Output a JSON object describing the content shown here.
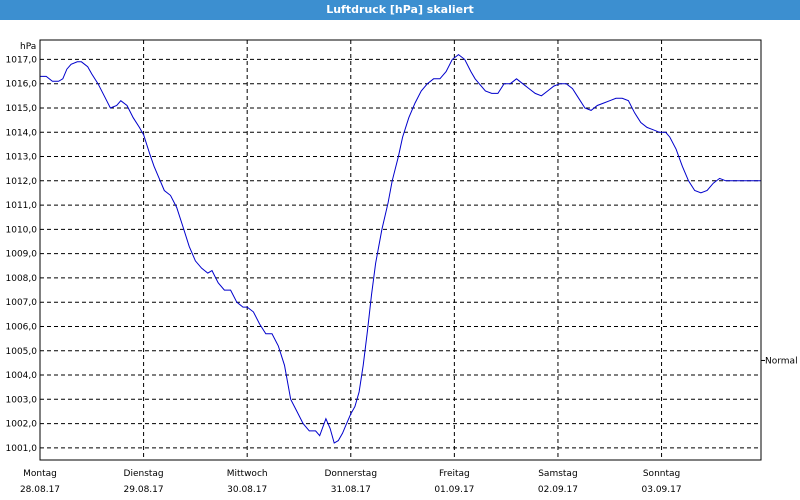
{
  "window": {
    "title": "Luftdruck [hPa] skaliert"
  },
  "chart_data": {
    "type": "line",
    "title": "Luftdruck [hPa] skaliert",
    "ylabel": "hPa",
    "ylim": [
      1000.5,
      1017.8
    ],
    "yticks": [
      "1001,0",
      "1002,0",
      "1003,0",
      "1004,0",
      "1005,0",
      "1006,0",
      "1007,0",
      "1008,0",
      "1009,0",
      "1010,0",
      "1011,0",
      "1012,0",
      "1013,0",
      "1014,0",
      "1015,0",
      "1016,0",
      "1017,0"
    ],
    "ytick_values": [
      1001,
      1002,
      1003,
      1004,
      1005,
      1006,
      1007,
      1008,
      1009,
      1010,
      1011,
      1012,
      1013,
      1014,
      1015,
      1016,
      1017
    ],
    "reference_line": {
      "label": "Normal",
      "value": 1004.6
    },
    "xlim": [
      0,
      6.96
    ],
    "days": [
      {
        "weekday": "Montag",
        "date": "28.08.17"
      },
      {
        "weekday": "Dienstag",
        "date": "29.08.17"
      },
      {
        "weekday": "Mittwoch",
        "date": "30.08.17"
      },
      {
        "weekday": "Donnerstag",
        "date": "31.08.17"
      },
      {
        "weekday": "Freitag",
        "date": "01.09.17"
      },
      {
        "weekday": "Samstag",
        "date": "02.09.17"
      },
      {
        "weekday": "Sonntag",
        "date": "03.09.17"
      }
    ],
    "grid": true,
    "series": [
      {
        "color": "#0000cc",
        "x": [
          0,
          0.06,
          0.12,
          0.18,
          0.22,
          0.26,
          0.3,
          0.36,
          0.4,
          0.46,
          0.5,
          0.56,
          0.62,
          0.68,
          0.74,
          0.78,
          0.84,
          0.9,
          0.96,
          1.0,
          1.06,
          1.1,
          1.16,
          1.2,
          1.26,
          1.32,
          1.38,
          1.44,
          1.5,
          1.56,
          1.62,
          1.66,
          1.72,
          1.78,
          1.84,
          1.9,
          1.96,
          2.0,
          2.06,
          2.12,
          2.18,
          2.24,
          2.3,
          2.36,
          2.42,
          2.48,
          2.54,
          2.6,
          2.66,
          2.7,
          2.76,
          2.8,
          2.84,
          2.88,
          2.92,
          2.96,
          3.0,
          3.04,
          3.08,
          3.12,
          3.16,
          3.2,
          3.24,
          3.3,
          3.36,
          3.4,
          3.46,
          3.5,
          3.56,
          3.62,
          3.68,
          3.74,
          3.8,
          3.86,
          3.92,
          3.98,
          4.04,
          4.1,
          4.16,
          4.2,
          4.24,
          4.3,
          4.36,
          4.42,
          4.48,
          4.54,
          4.6,
          4.66,
          4.72,
          4.78,
          4.84,
          4.9,
          4.96,
          5.02,
          5.08,
          5.14,
          5.2,
          5.26,
          5.32,
          5.38,
          5.44,
          5.5,
          5.56,
          5.62,
          5.68,
          5.74,
          5.8,
          5.86,
          5.92,
          5.98,
          6.04,
          6.08,
          6.14,
          6.2,
          6.26,
          6.32,
          6.38,
          6.44,
          6.5,
          6.56,
          6.62,
          6.68,
          6.74,
          6.8,
          6.86,
          6.92,
          6.96
        ],
        "y": [
          1016.3,
          1016.3,
          1016.1,
          1016.1,
          1016.2,
          1016.6,
          1016.8,
          1016.9,
          1016.9,
          1016.7,
          1016.4,
          1016.0,
          1015.5,
          1015.0,
          1015.1,
          1015.3,
          1015.1,
          1014.6,
          1014.2,
          1013.9,
          1013.1,
          1012.6,
          1012.0,
          1011.6,
          1011.4,
          1010.9,
          1010.1,
          1009.3,
          1008.7,
          1008.4,
          1008.2,
          1008.3,
          1007.8,
          1007.5,
          1007.5,
          1007.0,
          1006.8,
          1006.8,
          1006.6,
          1006.1,
          1005.7,
          1005.7,
          1005.2,
          1004.4,
          1003.0,
          1002.5,
          1002.0,
          1001.7,
          1001.7,
          1001.5,
          1002.2,
          1001.8,
          1001.2,
          1001.3,
          1001.6,
          1002.0,
          1002.4,
          1002.7,
          1003.3,
          1004.4,
          1005.8,
          1007.3,
          1008.6,
          1010.0,
          1011.1,
          1012.0,
          1013.0,
          1013.8,
          1014.6,
          1015.2,
          1015.7,
          1016.0,
          1016.2,
          1016.2,
          1016.5,
          1017.0,
          1017.2,
          1017.0,
          1016.5,
          1016.2,
          1016.0,
          1015.7,
          1015.6,
          1015.6,
          1016.0,
          1016.0,
          1016.2,
          1016.0,
          1015.8,
          1015.6,
          1015.5,
          1015.7,
          1015.9,
          1016.0,
          1016.0,
          1015.8,
          1015.4,
          1015.0,
          1014.9,
          1015.1,
          1015.2,
          1015.3,
          1015.4,
          1015.4,
          1015.3,
          1014.8,
          1014.4,
          1014.2,
          1014.1,
          1014.0,
          1014.0,
          1013.8,
          1013.3,
          1012.6,
          1012.0,
          1011.6,
          1011.5,
          1011.6,
          1011.9,
          1012.1,
          1012.0,
          1012.0,
          1012.0,
          1012.0,
          1012.0,
          1012.0,
          1012.0
        ]
      }
    ]
  }
}
